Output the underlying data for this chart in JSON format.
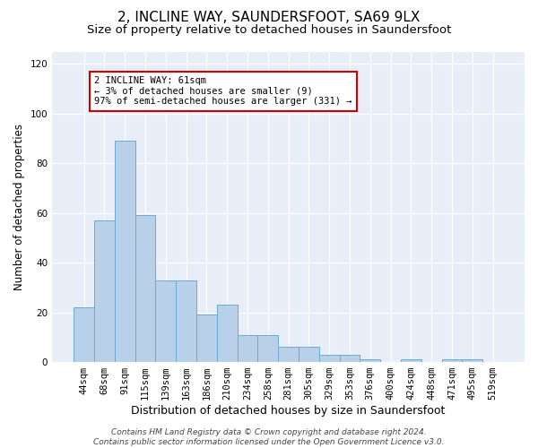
{
  "title1": "2, INCLINE WAY, SAUNDERSFOOT, SA69 9LX",
  "title2": "Size of property relative to detached houses in Saundersfoot",
  "xlabel": "Distribution of detached houses by size in Saundersfoot",
  "ylabel": "Number of detached properties",
  "categories": [
    "44sqm",
    "68sqm",
    "91sqm",
    "115sqm",
    "139sqm",
    "163sqm",
    "186sqm",
    "210sqm",
    "234sqm",
    "258sqm",
    "281sqm",
    "305sqm",
    "329sqm",
    "353sqm",
    "376sqm",
    "400sqm",
    "424sqm",
    "448sqm",
    "471sqm",
    "495sqm",
    "519sqm"
  ],
  "values": [
    22,
    57,
    89,
    59,
    33,
    33,
    19,
    23,
    11,
    11,
    6,
    6,
    3,
    3,
    1,
    0,
    1,
    0,
    1,
    1,
    0
  ],
  "bar_color": "#b8d0e8",
  "bar_edge_color": "#6aaad4",
  "annotation_text": "2 INCLINE WAY: 61sqm\n← 3% of detached houses are smaller (9)\n97% of semi-detached houses are larger (331) →",
  "annotation_box_color": "#ffffff",
  "annotation_box_edge_color": "#cc0000",
  "ylim": [
    0,
    125
  ],
  "yticks": [
    0,
    20,
    40,
    60,
    80,
    100,
    120
  ],
  "background_color": "#e8eef8",
  "footer": "Contains HM Land Registry data © Crown copyright and database right 2024.\nContains public sector information licensed under the Open Government Licence v3.0.",
  "title1_fontsize": 11,
  "title2_fontsize": 9.5,
  "xlabel_fontsize": 9,
  "ylabel_fontsize": 8.5,
  "tick_fontsize": 7.5,
  "footer_fontsize": 6.5,
  "ann_fontsize": 7.5
}
